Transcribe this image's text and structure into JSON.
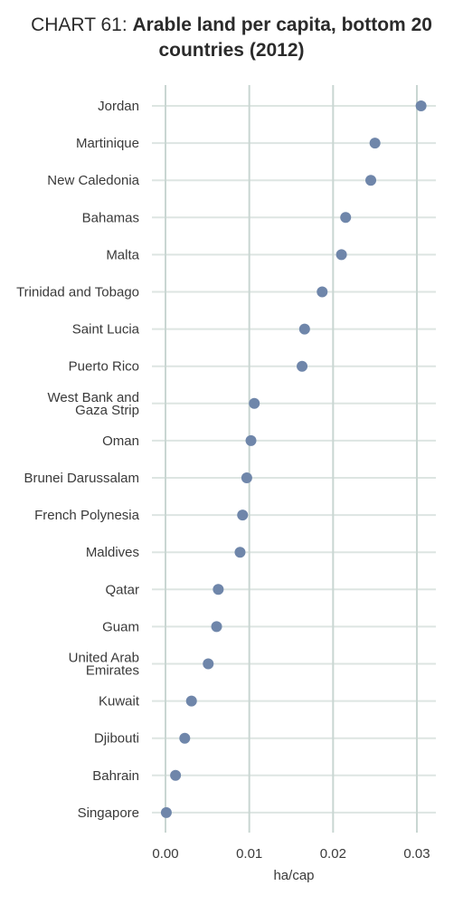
{
  "chart_data": {
    "type": "scatter",
    "title_prefix": "CHART 61: ",
    "title": "Arable land per capita, bottom 20 countries (2012)",
    "xlabel": "ha/cap",
    "ylabel": "",
    "xlim": [
      0,
      0.031
    ],
    "xticks": [
      0.0,
      0.01,
      0.02,
      0.03
    ],
    "xtick_labels": [
      "0.00",
      "0.01",
      "0.02",
      "0.03"
    ],
    "grid": true,
    "legend": false,
    "colors": {
      "point": "#6f86aa",
      "grid_major": "#c9d6d2",
      "grid_row": "#dde5e2"
    },
    "categories": [
      "Jordan",
      "Martinique",
      "New Caledonia",
      "Bahamas",
      "Malta",
      "Trinidad and Tobago",
      "Saint Lucia",
      "Puerto Rico",
      "West Bank and Gaza Strip",
      "Oman",
      "Brunei Darussalam",
      "French Polynesia",
      "Maldives",
      "Qatar",
      "Guam",
      "United Arab Emirates",
      "Kuwait",
      "Djibouti",
      "Bahrain",
      "Singapore"
    ],
    "values": [
      0.0305,
      0.025,
      0.0245,
      0.0215,
      0.021,
      0.0187,
      0.0166,
      0.0163,
      0.0106,
      0.0102,
      0.0097,
      0.0092,
      0.0089,
      0.0063,
      0.0061,
      0.0051,
      0.0031,
      0.0023,
      0.0012,
      0.0001
    ]
  }
}
